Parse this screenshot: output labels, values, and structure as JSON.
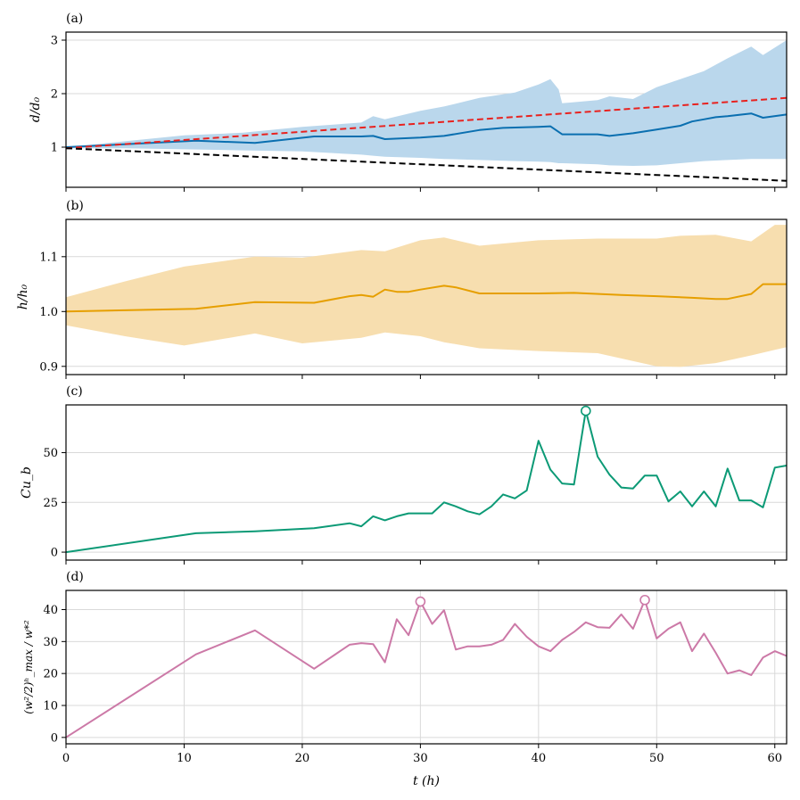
{
  "colors": {
    "blue": "#0a6fb0",
    "blue_band": "#bad7ec",
    "red": "#e8221f",
    "black": "#000000",
    "orange": "#e69f00",
    "orange_band": "#f7deaf",
    "green": "#0c9a76",
    "pink": "#cc79a7",
    "grid": "#d9d9d9"
  },
  "xaxis": {
    "label": "t (h)",
    "range": [
      0,
      61
    ],
    "ticks": [
      0,
      10,
      20,
      30,
      40,
      50,
      60
    ],
    "tick_labels": [
      "0",
      "10",
      "20",
      "30",
      "40",
      "50",
      "60"
    ]
  },
  "chart_data": [
    {
      "id": "a",
      "type": "line",
      "panel_label": "(a)",
      "ylabel": "d/d₀",
      "ylim": [
        0.25,
        3.15
      ],
      "yticks": [
        1,
        2,
        3
      ],
      "ytick_labels": [
        "1",
        "2",
        "3"
      ],
      "grid": "horizontal",
      "band": {
        "color_key": "blue_band",
        "x": [
          0,
          5,
          10,
          15,
          20,
          25,
          26,
          27,
          30,
          32,
          35,
          38,
          40,
          41,
          41.7,
          42,
          45,
          46,
          48,
          50,
          52,
          54,
          56,
          58,
          59,
          61
        ],
        "upper": [
          1.0,
          1.11,
          1.22,
          1.27,
          1.38,
          1.46,
          1.58,
          1.52,
          1.68,
          1.76,
          1.92,
          2.02,
          2.17,
          2.27,
          2.08,
          1.82,
          1.88,
          1.95,
          1.9,
          2.12,
          2.27,
          2.42,
          2.66,
          2.88,
          2.72,
          3.0
        ],
        "lower": [
          0.98,
          0.98,
          0.96,
          0.94,
          0.92,
          0.86,
          0.84,
          0.82,
          0.8,
          0.78,
          0.76,
          0.74,
          0.73,
          0.72,
          0.7,
          0.7,
          0.68,
          0.66,
          0.65,
          0.66,
          0.7,
          0.74,
          0.76,
          0.78,
          0.78,
          0.78
        ]
      },
      "series": [
        {
          "name": "d/d0",
          "color_key": "blue",
          "style": "solid",
          "x": [
            0,
            11,
            16,
            21,
            25,
            26,
            27,
            30,
            32,
            35,
            37,
            40,
            41,
            42,
            45,
            46,
            48,
            50,
            52,
            53,
            54,
            55,
            56,
            58,
            59,
            61
          ],
          "y": [
            1.0,
            1.12,
            1.08,
            1.2,
            1.2,
            1.21,
            1.15,
            1.18,
            1.21,
            1.32,
            1.36,
            1.38,
            1.39,
            1.24,
            1.24,
            1.21,
            1.26,
            1.33,
            1.4,
            1.48,
            1.52,
            1.56,
            1.58,
            1.63,
            1.55,
            1.61
          ]
        },
        {
          "name": "red dashed reference",
          "color_key": "red",
          "style": "dashed",
          "x": [
            0,
            61
          ],
          "y": [
            0.98,
            1.92
          ]
        },
        {
          "name": "black dashed reference",
          "color_key": "black",
          "style": "dashed",
          "x": [
            0,
            61
          ],
          "y": [
            0.98,
            0.37
          ]
        }
      ]
    },
    {
      "id": "b",
      "type": "line",
      "panel_label": "(b)",
      "ylabel": "h/h₀",
      "ylim": [
        0.885,
        1.168
      ],
      "yticks": [
        0.9,
        1.0,
        1.1
      ],
      "ytick_labels": [
        "0.9",
        "1.0",
        "1.1"
      ],
      "grid": "horizontal",
      "band": {
        "color_key": "orange_band",
        "x": [
          0,
          5,
          10,
          16,
          20,
          25,
          27,
          30,
          32,
          35,
          40,
          45,
          50,
          52,
          55,
          58,
          60,
          61
        ],
        "upper": [
          1.026,
          1.055,
          1.082,
          1.1,
          1.098,
          1.112,
          1.11,
          1.13,
          1.135,
          1.12,
          1.13,
          1.133,
          1.133,
          1.138,
          1.14,
          1.128,
          1.158,
          1.158
        ],
        "lower": [
          0.975,
          0.955,
          0.938,
          0.96,
          0.942,
          0.952,
          0.962,
          0.955,
          0.944,
          0.933,
          0.928,
          0.924,
          0.9,
          0.899,
          0.906,
          0.92,
          0.93,
          0.935
        ]
      },
      "series": [
        {
          "name": "h/h0",
          "color_key": "orange",
          "style": "solid",
          "x": [
            0,
            11,
            16,
            21,
            24,
            25,
            26,
            27,
            28,
            29,
            30,
            32,
            33,
            35,
            40,
            43,
            47,
            50,
            53,
            55,
            56,
            58,
            59,
            61
          ],
          "y": [
            1.0,
            1.005,
            1.017,
            1.016,
            1.028,
            1.03,
            1.027,
            1.04,
            1.036,
            1.036,
            1.04,
            1.047,
            1.044,
            1.033,
            1.033,
            1.034,
            1.03,
            1.028,
            1.025,
            1.023,
            1.023,
            1.032,
            1.05,
            1.05
          ]
        }
      ]
    },
    {
      "id": "c",
      "type": "line",
      "panel_label": "(c)",
      "ylabel": "Cu_b",
      "ylim": [
        -4,
        74
      ],
      "yticks": [
        0,
        25,
        50
      ],
      "ytick_labels": [
        "0",
        "25",
        "50"
      ],
      "grid": "horizontal",
      "series": [
        {
          "name": "Cu_b",
          "color_key": "green",
          "style": "solid",
          "x": [
            0,
            11,
            16,
            21,
            24,
            25,
            26,
            27,
            28,
            29,
            30,
            31,
            32,
            33,
            34,
            35,
            36,
            37,
            38,
            39,
            40,
            41,
            42,
            43,
            44,
            45,
            46,
            47,
            48,
            49,
            50,
            51,
            52,
            53,
            54,
            55,
            56,
            57,
            58,
            59,
            60,
            61
          ],
          "y": [
            0,
            9.5,
            10.5,
            12,
            14.5,
            13,
            18,
            16,
            18,
            19.5,
            19.5,
            19.5,
            25,
            23,
            20.5,
            19,
            23,
            29,
            27,
            31,
            56,
            41.5,
            34.5,
            34,
            71,
            48,
            39,
            32.5,
            32,
            38.5,
            38.5,
            25.5,
            30.5,
            23,
            30.5,
            23,
            42,
            26,
            26,
            22.5,
            42.5,
            43.5
          ]
        }
      ],
      "markers": [
        {
          "x": 44,
          "y": 71
        }
      ]
    },
    {
      "id": "d",
      "type": "line",
      "panel_label": "(d)",
      "ylabel": "(w²/2)ʰ_max / w*²",
      "ylim": [
        -2,
        46
      ],
      "yticks": [
        0,
        10,
        20,
        30,
        40
      ],
      "ytick_labels": [
        "0",
        "10",
        "20",
        "30",
        "40"
      ],
      "grid": "both",
      "series": [
        {
          "name": "max TKE ratio",
          "color_key": "pink",
          "style": "solid",
          "x": [
            0,
            11,
            16,
            21,
            24,
            25,
            26,
            27,
            28,
            29,
            30,
            31,
            32,
            33,
            34,
            35,
            36,
            37,
            38,
            39,
            40,
            41,
            42,
            43,
            44,
            45,
            46,
            47,
            48,
            49,
            50,
            51,
            52,
            53,
            54,
            55,
            56,
            57,
            58,
            59,
            60,
            61
          ],
          "y": [
            0,
            26,
            33.5,
            21.5,
            29,
            29.5,
            29.2,
            23.5,
            37,
            32,
            42.5,
            35.5,
            39.8,
            27.5,
            28.5,
            28.5,
            29,
            30.5,
            35.5,
            31.5,
            28.5,
            27,
            30.5,
            33,
            36,
            34.5,
            34.3,
            38.5,
            34,
            43,
            31,
            34,
            36,
            27,
            32.5,
            26.5,
            20,
            21,
            19.5,
            25,
            27,
            25.5
          ]
        }
      ],
      "markers": [
        {
          "x": 30,
          "y": 42.5
        },
        {
          "x": 49,
          "y": 43
        }
      ]
    }
  ]
}
